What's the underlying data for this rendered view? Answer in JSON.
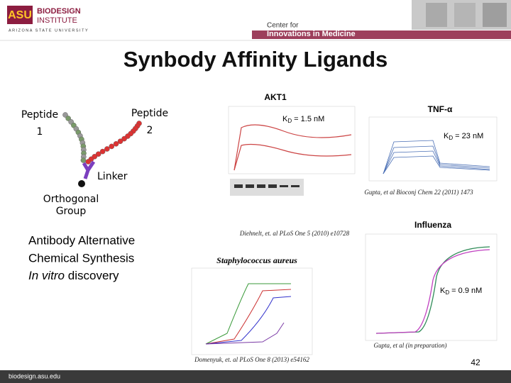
{
  "header": {
    "logo": "ASU",
    "institute": [
      "BIODESIGN",
      "INSTITUTE"
    ],
    "university": "ARIZONA STATE UNIVERSITY",
    "center": [
      "Center for",
      "Innovations in Medicine"
    ]
  },
  "title": "Synbody Affinity Ligands",
  "diagram": {
    "peptide1": [
      "Peptide",
      "1"
    ],
    "peptide2": [
      "Peptide",
      "2"
    ],
    "linker": "Linker",
    "orthogonal": [
      "Orthogonal",
      "Group"
    ]
  },
  "features": {
    "lines": [
      "Antibody Alternative",
      "Chemical Synthesis"
    ],
    "last_italic": "In vitro",
    "last_rest": " discovery"
  },
  "panels": {
    "akt1": {
      "title": "AKT1",
      "kd_symbol": "K",
      "kd_sub": "D",
      "kd_value": " = 1.5 nM",
      "citation": "Diehnelt, et. al PLoS One 5 (2010) e10728"
    },
    "tnf": {
      "title": "TNF-α",
      "kd_symbol": "K",
      "kd_sub": "D",
      "kd_value": " = 23 nM",
      "citation": "Gupta, et al Bioconj Chem 22 (2011) 1473"
    },
    "influenza": {
      "title": "Influenza",
      "kd_symbol": "K",
      "kd_sub": "D",
      "kd_value": " = 0.9 nM",
      "citation": "Gupta, et al (in preparation)"
    },
    "staph": {
      "title": "Staphylococcus aureus",
      "citation": "Domenyuk, et. al PLoS One 8 (2013) e54162"
    }
  },
  "footer": {
    "url": "biodesign.asu.edu",
    "page": "42"
  }
}
